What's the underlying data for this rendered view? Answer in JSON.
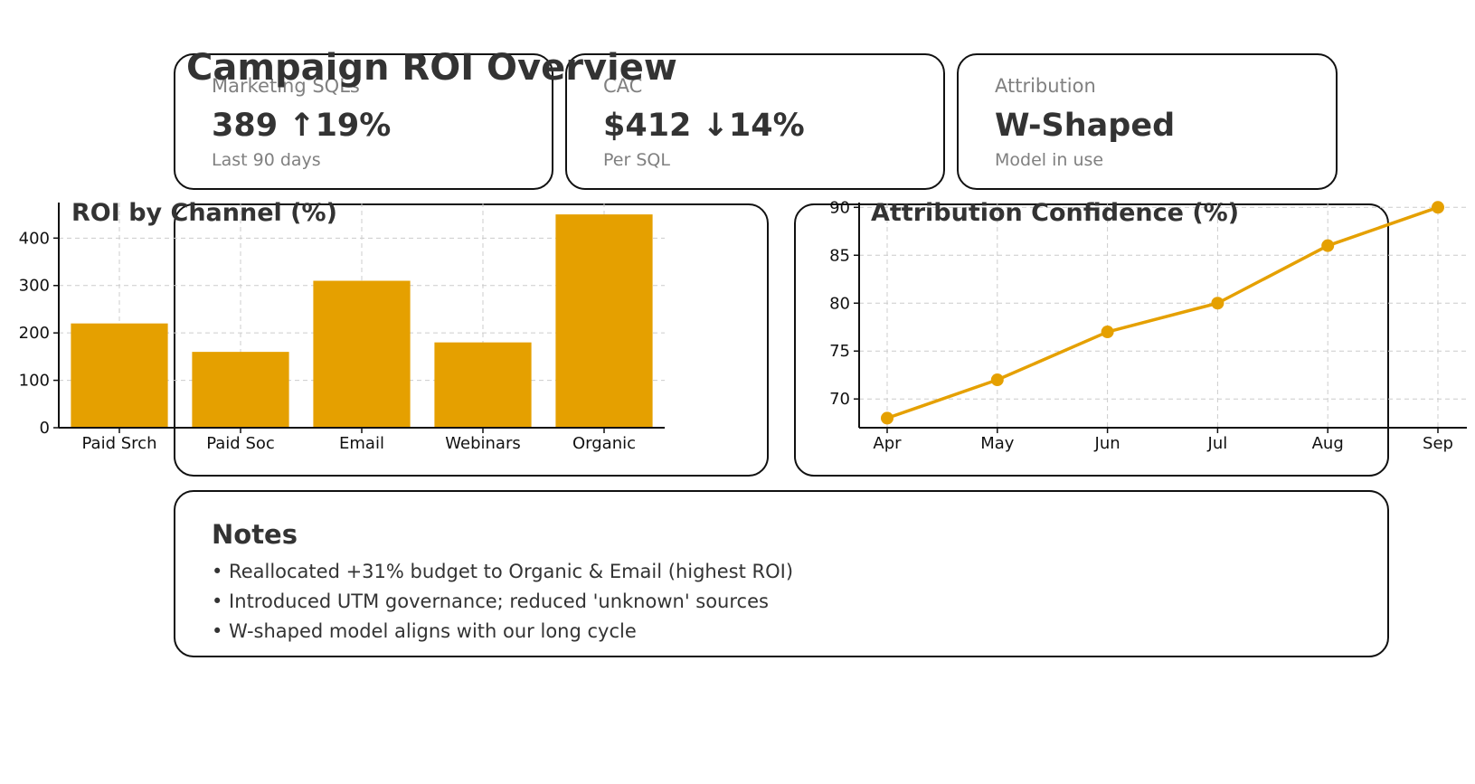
{
  "header": {
    "title": "Campaign ROI Overview"
  },
  "kpis": [
    {
      "label": "Marketing SQLs",
      "value": "389 ↑19%",
      "sub": "Last 90 days"
    },
    {
      "label": "CAC",
      "value": "$412 ↓14%",
      "sub": "Per SQL"
    },
    {
      "label": "Attribution",
      "value": "W-Shaped",
      "sub": "Model in use"
    }
  ],
  "notes": {
    "title": "Notes",
    "items": [
      "• Reallocated +31% budget to Organic & Email (highest ROI)",
      "• Introduced UTM governance; reduced 'unknown' sources",
      "• W-shaped model aligns with our long cycle"
    ]
  },
  "colors": {
    "accent": "#E5A000",
    "text": "#333333",
    "muted": "#808080",
    "grid": "#cccccc"
  },
  "chart_data": [
    {
      "type": "bar",
      "title": "ROI by Channel (%)",
      "categories": [
        "Paid Srch",
        "Paid Soc",
        "Email",
        "Webinars",
        "Organic"
      ],
      "values": [
        220,
        160,
        310,
        180,
        450
      ],
      "yticks": [
        0,
        100,
        200,
        300,
        400
      ],
      "ylim": [
        0,
        475
      ],
      "xlabel": "",
      "ylabel": "",
      "grid": true,
      "color": "#E5A000"
    },
    {
      "type": "line",
      "title": "Attribution Confidence (%)",
      "categories": [
        "Apr",
        "May",
        "Jun",
        "Jul",
        "Aug",
        "Sep"
      ],
      "values": [
        68,
        72,
        77,
        80,
        86,
        90
      ],
      "yticks": [
        70,
        75,
        80,
        85,
        90
      ],
      "ylim": [
        67,
        90.5
      ],
      "xlabel": "",
      "ylabel": "",
      "grid": true,
      "color": "#E5A000"
    }
  ]
}
